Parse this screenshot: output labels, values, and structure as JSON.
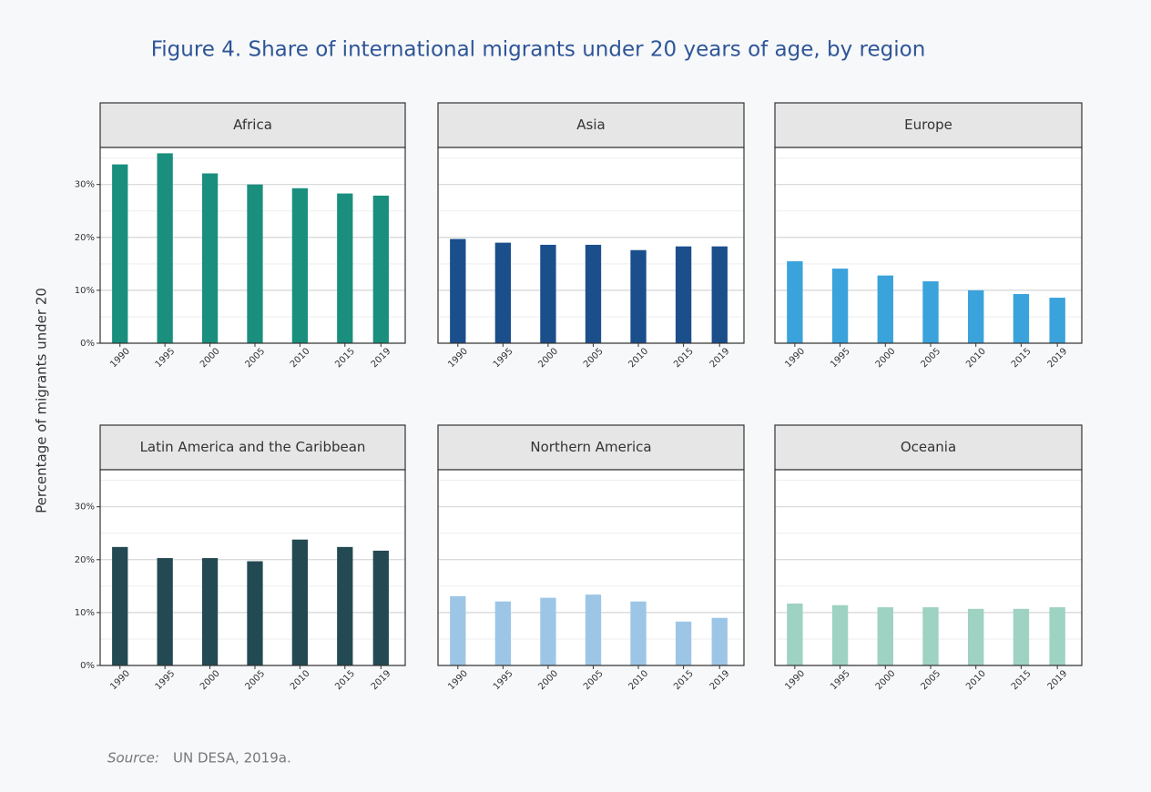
{
  "title": "Figure 4. Share of international migrants under 20 years of age, by region",
  "y_label": "Percentage of migrants under 20",
  "source_label": "Source:",
  "source": "UN DESA, 2019a.",
  "chart_data": [
    {
      "type": "bar",
      "title": "Africa",
      "x": [
        1990,
        1995,
        2000,
        2005,
        2010,
        2015,
        2019
      ],
      "values": [
        33.8,
        35.9,
        32.1,
        30.0,
        29.3,
        28.3,
        27.9
      ],
      "color": "#1a8f7e",
      "xlim": [
        1987.8,
        2021.7
      ],
      "ylim": [
        0,
        37
      ],
      "yticks": [
        {
          "value": 0,
          "label": "0%"
        },
        {
          "value": 10,
          "label": "10%"
        },
        {
          "value": 20,
          "label": "20%"
        },
        {
          "value": 30,
          "label": "30%"
        }
      ],
      "minor_yticks": [
        5,
        15,
        25,
        35
      ],
      "grid": true
    },
    {
      "type": "bar",
      "title": "Asia",
      "x": [
        1990,
        1995,
        2000,
        2005,
        2010,
        2015,
        2019
      ],
      "values": [
        19.7,
        19.0,
        18.6,
        18.6,
        17.6,
        18.3,
        18.3
      ],
      "color": "#1b4f8c",
      "xlim": [
        1987.8,
        2021.7
      ],
      "ylim": [
        0,
        37
      ],
      "yticks": [
        0,
        10,
        20,
        30
      ],
      "minor_yticks": [
        5,
        15,
        25,
        35
      ],
      "grid": true
    },
    {
      "type": "bar",
      "title": "Europe",
      "x": [
        1990,
        1995,
        2000,
        2005,
        2010,
        2015,
        2019
      ],
      "values": [
        15.5,
        14.1,
        12.8,
        11.7,
        10.0,
        9.3,
        8.6
      ],
      "color": "#3ba3db",
      "xlim": [
        1987.8,
        2021.7
      ],
      "ylim": [
        0,
        37
      ],
      "yticks": [
        0,
        10,
        20,
        30
      ],
      "minor_yticks": [
        5,
        15,
        25,
        35
      ],
      "grid": true
    },
    {
      "type": "bar",
      "title": "Latin America and the Caribbean",
      "x": [
        1990,
        1995,
        2000,
        2005,
        2010,
        2015,
        2019
      ],
      "values": [
        22.4,
        20.3,
        20.3,
        19.7,
        23.8,
        22.4,
        21.7
      ],
      "color": "#234a52",
      "xlim": [
        1987.8,
        2021.7
      ],
      "ylim": [
        0,
        37
      ],
      "yticks": [
        {
          "value": 0,
          "label": "0%"
        },
        {
          "value": 10,
          "label": "10%"
        },
        {
          "value": 20,
          "label": "20%"
        },
        {
          "value": 30,
          "label": "30%"
        }
      ],
      "minor_yticks": [
        5,
        15,
        25,
        35
      ],
      "grid": true
    },
    {
      "type": "bar",
      "title": "Northern America",
      "x": [
        1990,
        1995,
        2000,
        2005,
        2010,
        2015,
        2019
      ],
      "values": [
        13.1,
        12.1,
        12.8,
        13.4,
        12.1,
        8.3,
        9.0
      ],
      "color": "#9dc6e6",
      "xlim": [
        1987.8,
        2021.7
      ],
      "ylim": [
        0,
        37
      ],
      "yticks": [
        0,
        10,
        20,
        30
      ],
      "minor_yticks": [
        5,
        15,
        25,
        35
      ],
      "grid": true
    },
    {
      "type": "bar",
      "title": "Oceania",
      "x": [
        1990,
        1995,
        2000,
        2005,
        2010,
        2015,
        2019
      ],
      "values": [
        11.7,
        11.4,
        11.0,
        11.0,
        10.7,
        10.7,
        11.0
      ],
      "color": "#9ed2c2",
      "xlim": [
        1987.8,
        2021.7
      ],
      "ylim": [
        0,
        37
      ],
      "yticks": [
        0,
        10,
        20,
        30
      ],
      "minor_yticks": [
        5,
        15,
        25,
        35
      ],
      "grid": true
    }
  ]
}
